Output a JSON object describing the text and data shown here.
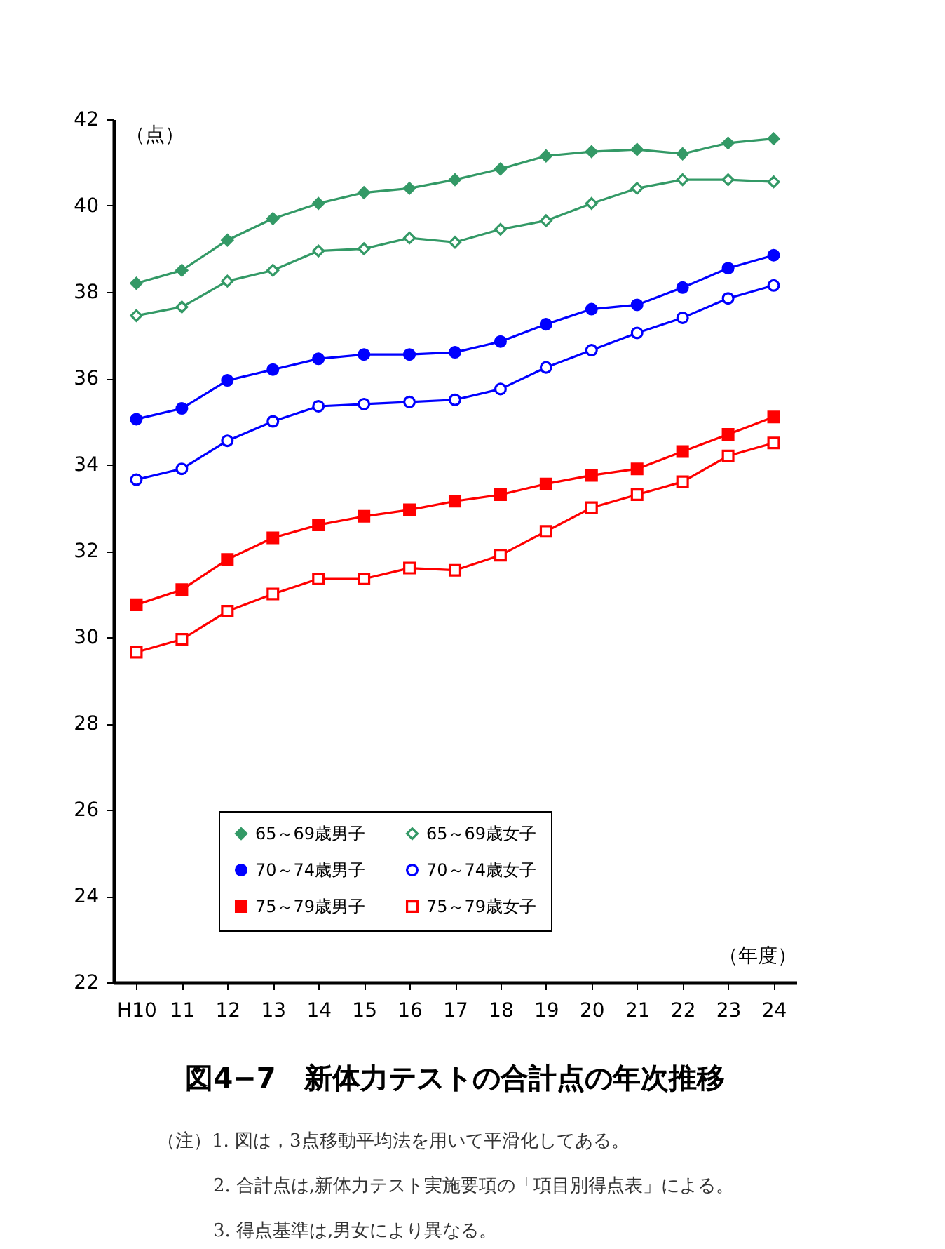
{
  "chart_data": {
    "type": "line",
    "title": "図4−7　新体力テストの合計点の年次推移",
    "xlabel": "（年度）",
    "ylabel": "（点）",
    "annotations": [
      "（注）1. 図は，3点移動平均法を用いて平滑化してある。",
      "2. 合計点は,新体力テスト実施要項の「項目別得点表」による。",
      "3. 得点基準は,男女により異なる。"
    ],
    "categories": [
      "H10",
      "11",
      "12",
      "13",
      "14",
      "15",
      "16",
      "17",
      "18",
      "19",
      "20",
      "21",
      "22",
      "23",
      "24"
    ],
    "ylim": [
      22,
      42
    ],
    "yticks": [
      22,
      24,
      26,
      28,
      30,
      32,
      34,
      36,
      38,
      40,
      42
    ],
    "grid": false,
    "legend": "bottom",
    "series": [
      {
        "name": "65～69歳男子",
        "color": "#339966",
        "marker": "diamond",
        "values": [
          38.2,
          38.5,
          39.2,
          39.7,
          40.05,
          40.3,
          40.4,
          40.6,
          40.85,
          41.15,
          41.25,
          41.3,
          41.2,
          41.45,
          41.55
        ]
      },
      {
        "name": "70～74歳男子",
        "color": "#0000ff",
        "marker": "circle",
        "values": [
          35.05,
          35.3,
          35.95,
          36.2,
          36.45,
          36.55,
          36.55,
          36.6,
          36.85,
          37.25,
          37.6,
          37.7,
          38.1,
          38.55,
          38.85
        ]
      },
      {
        "name": "75～79歳男子",
        "color": "#ff0000",
        "marker": "square",
        "values": [
          30.75,
          31.1,
          31.8,
          32.3,
          32.6,
          32.8,
          32.95,
          33.15,
          33.3,
          33.55,
          33.75,
          33.9,
          34.3,
          34.7,
          35.1
        ]
      },
      {
        "name": "65～69歳女子",
        "color": "#339966",
        "marker": "diamond",
        "values": [
          37.45,
          37.65,
          38.25,
          38.5,
          38.95,
          39.0,
          39.25,
          39.15,
          39.45,
          39.65,
          40.05,
          40.4,
          40.6,
          40.6,
          40.55
        ]
      },
      {
        "name": "70～74歳女子",
        "color": "#0000ff",
        "marker": "circle",
        "values": [
          33.65,
          33.9,
          34.55,
          35.0,
          35.35,
          35.4,
          35.45,
          35.5,
          35.75,
          36.25,
          36.65,
          37.05,
          37.4,
          37.85,
          38.15
        ]
      },
      {
        "name": "75～79歳女子",
        "color": "#ff0000",
        "marker": "square",
        "values": [
          29.65,
          29.95,
          30.6,
          31.0,
          31.35,
          31.35,
          31.6,
          31.55,
          31.9,
          32.45,
          33.0,
          33.3,
          33.6,
          34.2,
          34.5
        ]
      }
    ]
  }
}
